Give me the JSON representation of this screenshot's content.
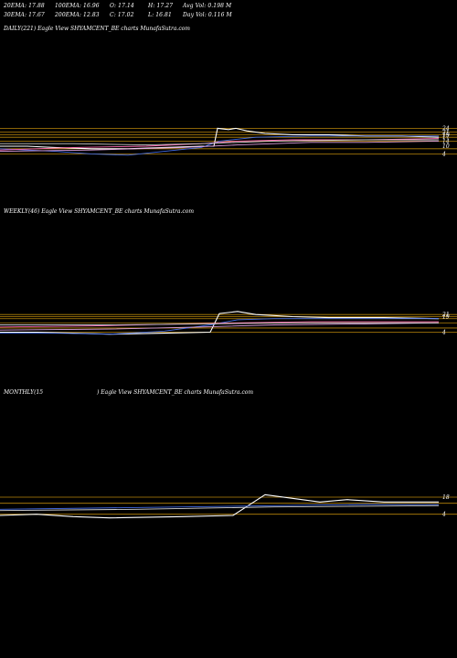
{
  "stats": {
    "ema20": "20EMA: 17.88",
    "ema100": "100EMA: 16.96",
    "open": "O: 17.14",
    "high": "H: 17.27",
    "avgvol": "Avg Vol: 0.198  M",
    "ema30": "30EMA: 17.67",
    "ema200": "200EMA: 12.83",
    "close": "C: 17.02",
    "low": "L: 16.81",
    "dayvol": "Day Vol: 0.116  M"
  },
  "panels": {
    "daily": "DAILY(221) Eagle   View  SHYAMCENT_BE charts MunafaSutra.com",
    "weekly": "WEEKLY(46) Eagle   View  SHYAMCENT_BE charts MunafaSutra.com",
    "monthly_a": "MONTHLY(15",
    "monthly_b": ") Eagle   View  SHYAMCENT_BE charts MunafaSutra.com"
  },
  "chart_data": [
    {
      "type": "line",
      "name": "daily",
      "ylim": [
        0,
        30
      ],
      "hlines": [
        {
          "y": 24,
          "color": "#b8860b"
        },
        {
          "y": 21,
          "color": "#b8860b"
        },
        {
          "y": 19,
          "color": "#b8860b"
        },
        {
          "y": 17,
          "color": "#b8860b"
        },
        {
          "y": 14,
          "color": "#b8860b"
        },
        {
          "y": 8,
          "color": "#b8860b"
        },
        {
          "y": 4,
          "color": "#b8860b"
        }
      ],
      "tick_labels": [
        {
          "y": 24,
          "text": "24"
        },
        {
          "y": 21,
          "text": "21"
        },
        {
          "y": 19,
          "text": "19"
        },
        {
          "y": 17,
          "text": "17"
        },
        {
          "y": 14,
          "text": "14"
        },
        {
          "y": 10,
          "text": "10"
        },
        {
          "y": 4,
          "text": "4"
        }
      ],
      "series": [
        {
          "color": "#ffffff",
          "values": [
            [
              0,
              10
            ],
            [
              30,
              10
            ],
            [
              60,
              9
            ],
            [
              100,
              8
            ],
            [
              140,
              8
            ],
            [
              180,
              9
            ],
            [
              220,
              10
            ],
            [
              234,
              10
            ],
            [
              238,
              24
            ],
            [
              250,
              23
            ],
            [
              258,
              24
            ],
            [
              270,
              22
            ],
            [
              290,
              20
            ],
            [
              320,
              19
            ],
            [
              360,
              19
            ],
            [
              400,
              18
            ],
            [
              440,
              18
            ],
            [
              480,
              17
            ]
          ]
        },
        {
          "color": "#4169e1",
          "values": [
            [
              0,
              8
            ],
            [
              60,
              6
            ],
            [
              100,
              4
            ],
            [
              140,
              3
            ],
            [
              180,
              6
            ],
            [
              220,
              9
            ],
            [
              240,
              14
            ],
            [
              280,
              17
            ],
            [
              340,
              18
            ],
            [
              400,
              18
            ],
            [
              480,
              18
            ]
          ]
        },
        {
          "color": "#ff69b4",
          "values": [
            [
              0,
              7
            ],
            [
              80,
              9
            ],
            [
              160,
              10
            ],
            [
              220,
              12
            ],
            [
              260,
              14
            ],
            [
              320,
              15
            ],
            [
              400,
              15
            ],
            [
              480,
              16
            ]
          ]
        },
        {
          "color": "#dda0dd",
          "values": [
            [
              0,
              6
            ],
            [
              100,
              7
            ],
            [
              200,
              9
            ],
            [
              260,
              11
            ],
            [
              340,
              13
            ],
            [
              400,
              13
            ],
            [
              480,
              14
            ]
          ]
        },
        {
          "color": "#cccccc",
          "values": [
            [
              0,
              12
            ],
            [
              80,
              12
            ],
            [
              160,
              11
            ],
            [
              220,
              12
            ],
            [
              300,
              14
            ],
            [
              400,
              15
            ],
            [
              480,
              15
            ]
          ]
        }
      ]
    },
    {
      "type": "line",
      "name": "weekly",
      "ylim": [
        0,
        30
      ],
      "hlines": [
        {
          "y": 21,
          "color": "#b8860b"
        },
        {
          "y": 19,
          "color": "#b8860b"
        },
        {
          "y": 17,
          "color": "#b8860b"
        },
        {
          "y": 13,
          "color": "#b8860b"
        },
        {
          "y": 8,
          "color": "#b8860b"
        },
        {
          "y": 4,
          "color": "#b8860b"
        }
      ],
      "tick_labels": [
        {
          "y": 21,
          "text": "21"
        },
        {
          "y": 19,
          "text": "19"
        },
        {
          "y": 4,
          "text": "4"
        }
      ],
      "series": [
        {
          "color": "#ffffff",
          "values": [
            [
              0,
              4
            ],
            [
              40,
              4
            ],
            [
              80,
              3
            ],
            [
              120,
              2
            ],
            [
              180,
              3
            ],
            [
              230,
              4
            ],
            [
              240,
              22
            ],
            [
              260,
              24
            ],
            [
              280,
              21
            ],
            [
              320,
              19
            ],
            [
              360,
              18
            ],
            [
              420,
              18
            ],
            [
              480,
              17
            ]
          ]
        },
        {
          "color": "#4169e1",
          "values": [
            [
              0,
              3
            ],
            [
              60,
              3
            ],
            [
              120,
              2
            ],
            [
              180,
              5
            ],
            [
              230,
              11
            ],
            [
              260,
              16
            ],
            [
              300,
              17
            ],
            [
              380,
              17
            ],
            [
              480,
              17
            ]
          ]
        },
        {
          "color": "#ff69b4",
          "values": [
            [
              0,
              9
            ],
            [
              100,
              10
            ],
            [
              200,
              12
            ],
            [
              260,
              13
            ],
            [
              340,
              14
            ],
            [
              420,
              14
            ],
            [
              480,
              14
            ]
          ]
        },
        {
          "color": "#dda0dd",
          "values": [
            [
              0,
              6
            ],
            [
              120,
              7
            ],
            [
              220,
              9
            ],
            [
              300,
              11
            ],
            [
              400,
              12
            ],
            [
              480,
              13
            ]
          ]
        },
        {
          "color": "#cccccc",
          "values": [
            [
              0,
              11
            ],
            [
              120,
              11
            ],
            [
              220,
              12
            ],
            [
              320,
              13
            ],
            [
              480,
              13
            ]
          ]
        }
      ]
    },
    {
      "type": "line",
      "name": "monthly",
      "ylim": [
        0,
        30
      ],
      "hlines": [
        {
          "y": 18,
          "color": "#b8860b"
        },
        {
          "y": 13,
          "color": "#b8860b"
        },
        {
          "y": 4,
          "color": "#b8860b"
        }
      ],
      "tick_labels": [
        {
          "y": 18,
          "text": "18"
        },
        {
          "y": 4,
          "text": "4"
        }
      ],
      "series": [
        {
          "color": "#ffffff",
          "values": [
            [
              0,
              3
            ],
            [
              40,
              4
            ],
            [
              80,
              2
            ],
            [
              120,
              1
            ],
            [
              200,
              2
            ],
            [
              255,
              3
            ],
            [
              290,
              20
            ],
            [
              320,
              17
            ],
            [
              350,
              14
            ],
            [
              380,
              16
            ],
            [
              420,
              14
            ],
            [
              480,
              14
            ]
          ]
        },
        {
          "color": "#4169e1",
          "values": [
            [
              0,
              8
            ],
            [
              100,
              9
            ],
            [
              200,
              10
            ],
            [
              300,
              11
            ],
            [
              400,
              12
            ],
            [
              480,
              12
            ]
          ]
        },
        {
          "color": "#cccccc",
          "values": [
            [
              0,
              7
            ],
            [
              150,
              8
            ],
            [
              300,
              10
            ],
            [
              480,
              11
            ]
          ]
        }
      ]
    }
  ]
}
